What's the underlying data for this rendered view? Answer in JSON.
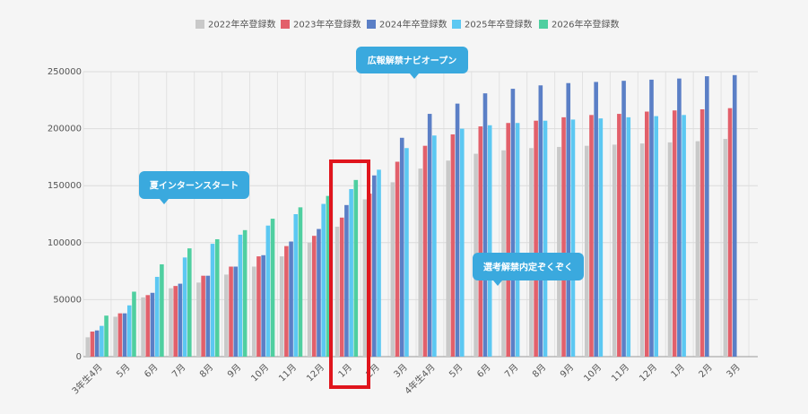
{
  "chart_data": {
    "type": "bar",
    "categories": [
      "3年生4月",
      "5月",
      "6月",
      "7月",
      "8月",
      "9月",
      "10月",
      "11月",
      "12月",
      "1月",
      "2月",
      "3月",
      "4年生4月",
      "5月",
      "6月",
      "7月",
      "8月",
      "9月",
      "10月",
      "11月",
      "12月",
      "1月",
      "2月",
      "3月"
    ],
    "series": [
      {
        "name": "2022年卒登録数",
        "color": "#c9c9c9",
        "values": [
          17000,
          35000,
          52000,
          60000,
          65000,
          72000,
          79000,
          88000,
          100000,
          114000,
          138000,
          153000,
          165000,
          172000,
          178000,
          181000,
          183000,
          184000,
          185000,
          186000,
          187000,
          188000,
          189000,
          191000
        ]
      },
      {
        "name": "2023年卒登録数",
        "color": "#e2606b",
        "values": [
          22000,
          38000,
          54000,
          62000,
          71000,
          79000,
          88000,
          97000,
          106000,
          122000,
          143000,
          171000,
          185000,
          195000,
          202000,
          205000,
          207000,
          210000,
          212000,
          213000,
          215000,
          216000,
          217000,
          218000
        ]
      },
      {
        "name": "2024年卒登録数",
        "color": "#5b7fc6",
        "values": [
          23000,
          38000,
          56000,
          64000,
          71000,
          79000,
          89000,
          101000,
          112000,
          133000,
          159000,
          192000,
          213000,
          222000,
          231000,
          235000,
          238000,
          240000,
          241000,
          242000,
          243000,
          244000,
          246000,
          247000
        ]
      },
      {
        "name": "2025年卒登録数",
        "color": "#5cc8f2",
        "values": [
          27000,
          45000,
          70000,
          87000,
          99000,
          107000,
          115000,
          125000,
          134000,
          147000,
          164000,
          183000,
          194000,
          200000,
          203000,
          205000,
          207000,
          208000,
          209000,
          210000,
          211000,
          212000,
          null,
          null
        ]
      },
      {
        "name": "2026年卒登録数",
        "color": "#4fcfa0",
        "values": [
          36000,
          57000,
          81000,
          95000,
          103000,
          111000,
          121000,
          131000,
          141000,
          155000,
          null,
          null,
          null,
          null,
          null,
          null,
          null,
          null,
          null,
          null,
          null,
          null,
          null,
          null
        ]
      }
    ],
    "ylim": [
      0,
      250000
    ],
    "yticks": [
      0,
      50000,
      100000,
      150000,
      200000,
      250000
    ],
    "grid": true,
    "annotations": [
      {
        "text": "夏インターンスタート"
      },
      {
        "text": "広報解禁ナビオープン"
      },
      {
        "text": "選考解禁内定ぞくぞく"
      }
    ]
  }
}
